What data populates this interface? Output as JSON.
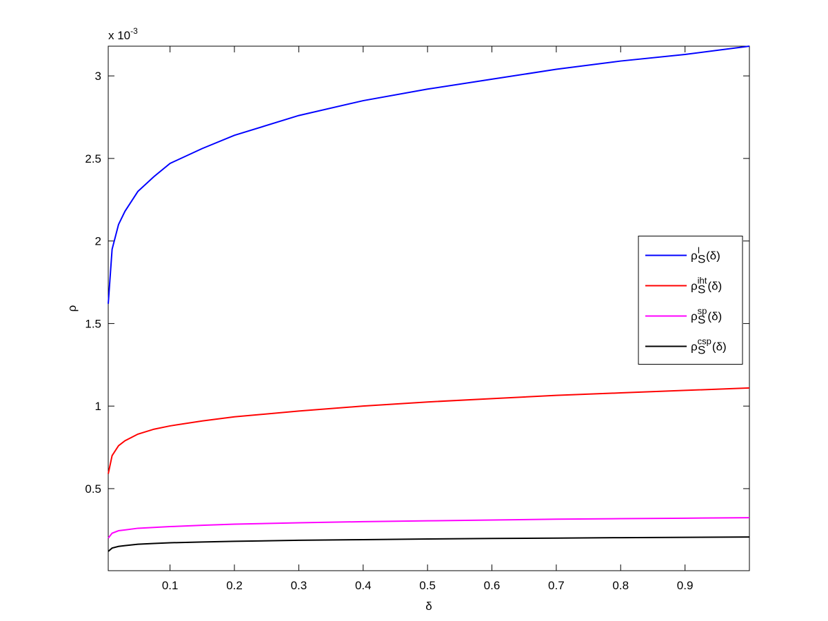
{
  "chart_data": {
    "type": "line",
    "x_label": "δ",
    "y_label": "ρ",
    "y_multiplier": {
      "base": "x 10",
      "exponent": "-3"
    },
    "x": [
      0.004,
      0.01,
      0.02,
      0.03,
      0.05,
      0.075,
      0.1,
      0.15,
      0.2,
      0.3,
      0.4,
      0.5,
      0.6,
      0.7,
      0.8,
      0.9,
      1
    ],
    "series": [
      {
        "name": {
          "symbol": "ρ",
          "superscript": "I",
          "subscript": "S",
          "argument": "(δ)"
        },
        "color": "#0000ff",
        "values": [
          1.62,
          1.95,
          2.1,
          2.18,
          2.3,
          2.39,
          2.47,
          2.56,
          2.64,
          2.76,
          2.85,
          2.92,
          2.98,
          3.04,
          3.09,
          3.13,
          3.18
        ]
      },
      {
        "name": {
          "symbol": "ρ",
          "superscript": "iht",
          "subscript": "S",
          "argument": "(δ)"
        },
        "color": "#ff0000",
        "values": [
          0.59,
          0.7,
          0.76,
          0.79,
          0.83,
          0.86,
          0.88,
          0.91,
          0.935,
          0.97,
          1.0,
          1.025,
          1.045,
          1.065,
          1.08,
          1.095,
          1.11
        ]
      },
      {
        "name": {
          "symbol": "ρ",
          "superscript": "sp",
          "subscript": "S",
          "argument": "(δ)"
        },
        "color": "#ff00ff",
        "values": [
          0.2,
          0.23,
          0.245,
          0.25,
          0.26,
          0.265,
          0.27,
          0.278,
          0.285,
          0.293,
          0.3,
          0.305,
          0.31,
          0.315,
          0.318,
          0.321,
          0.324
        ]
      },
      {
        "name": {
          "symbol": "ρ",
          "superscript": "csp",
          "subscript": "S",
          "argument": "(δ)"
        },
        "color": "#000000",
        "values": [
          0.12,
          0.14,
          0.15,
          0.155,
          0.163,
          0.168,
          0.172,
          0.177,
          0.181,
          0.187,
          0.191,
          0.195,
          0.198,
          0.2,
          0.203,
          0.205,
          0.207
        ]
      }
    ],
    "xlim": [
      0.004,
      1
    ],
    "xticks": [
      0.1,
      0.2,
      0.3,
      0.4,
      0.5,
      0.6,
      0.7,
      0.8,
      0.9
    ],
    "ylim": [
      0.003,
      3.18
    ],
    "yticks": [
      0.5,
      1,
      1.5,
      2,
      2.5,
      3
    ],
    "grid": false,
    "legend": "east"
  }
}
